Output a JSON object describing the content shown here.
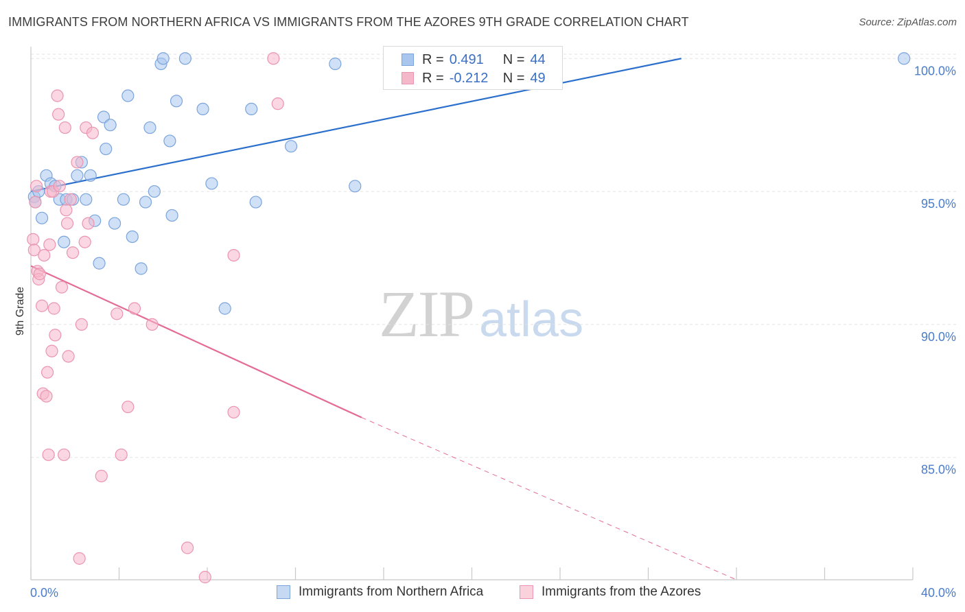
{
  "header": {
    "title": "IMMIGRANTS FROM NORTHERN AFRICA VS IMMIGRANTS FROM THE AZORES 9TH GRADE CORRELATION CHART",
    "source": "Source: ZipAtlas.com"
  },
  "watermark": {
    "zip": "ZIP",
    "atlas": "atlas"
  },
  "legend": {
    "blue": {
      "r_label": "R =",
      "r_value": "0.491",
      "n_label": "N =",
      "n_value": "44"
    },
    "pink": {
      "r_label": "R =",
      "r_value": "-0.212",
      "n_label": "N =",
      "n_value": "49"
    }
  },
  "colors": {
    "blue_fill": "#a9c6ee",
    "blue_stroke": "#7aa4db",
    "blue_line": "#2b6fcd",
    "pink_fill": "#f5b7ca",
    "pink_stroke": "#eb94b0",
    "pink_line": "#e46b96",
    "tick_text": "#4a7cc9",
    "grid": "#e3e3e3"
  },
  "chart_data": {
    "type": "scatter",
    "title": "IMMIGRANTS FROM NORTHERN AFRICA VS IMMIGRANTS FROM THE AZORES 9TH GRADE CORRELATION CHART",
    "xlabel": "",
    "ylabel": "9th Grade",
    "xlim": [
      0,
      40
    ],
    "ylim": [
      80.4,
      100.6
    ],
    "x_tick_labels": [
      "0.0%",
      "40.0%"
    ],
    "y_ticks": [
      85,
      90,
      95,
      100
    ],
    "y_tick_labels": [
      "85.0%",
      "90.0%",
      "95.0%",
      "100.0%"
    ],
    "grid": true,
    "legend_position": "bottom-center",
    "series": [
      {
        "name": "Immigrants from Northern Africa",
        "color": "#a9c6ee",
        "points": [
          [
            0.15,
            94.8
          ],
          [
            0.2,
            94.6
          ],
          [
            0.35,
            95.0
          ],
          [
            0.5,
            94.0
          ],
          [
            0.7,
            95.6
          ],
          [
            0.9,
            95.3
          ],
          [
            1.1,
            95.2
          ],
          [
            1.3,
            94.7
          ],
          [
            1.5,
            93.1
          ],
          [
            1.6,
            94.7
          ],
          [
            1.9,
            94.7
          ],
          [
            2.1,
            95.6
          ],
          [
            2.3,
            96.1
          ],
          [
            2.5,
            94.7
          ],
          [
            2.7,
            95.6
          ],
          [
            2.9,
            93.9
          ],
          [
            3.1,
            92.3
          ],
          [
            3.3,
            97.8
          ],
          [
            3.4,
            96.6
          ],
          [
            3.6,
            97.5
          ],
          [
            3.8,
            93.8
          ],
          [
            4.2,
            94.7
          ],
          [
            4.4,
            98.6
          ],
          [
            4.6,
            93.3
          ],
          [
            5.0,
            92.1
          ],
          [
            5.2,
            94.6
          ],
          [
            5.4,
            97.4
          ],
          [
            5.6,
            95.0
          ],
          [
            5.9,
            99.8
          ],
          [
            6.0,
            100.0
          ],
          [
            6.3,
            96.9
          ],
          [
            6.4,
            94.1
          ],
          [
            6.6,
            98.4
          ],
          [
            7.0,
            100.0
          ],
          [
            7.8,
            98.1
          ],
          [
            8.2,
            95.3
          ],
          [
            8.8,
            90.6
          ],
          [
            10.0,
            98.1
          ],
          [
            10.2,
            94.6
          ],
          [
            11.8,
            96.7
          ],
          [
            13.8,
            99.8
          ],
          [
            14.7,
            95.2
          ],
          [
            19.1,
            100.0
          ],
          [
            39.6,
            100.0
          ]
        ]
      },
      {
        "name": "Immigrants from the Azores",
        "color": "#f5b7ca",
        "points": [
          [
            0.1,
            93.2
          ],
          [
            0.15,
            92.8
          ],
          [
            0.2,
            94.6
          ],
          [
            0.25,
            95.2
          ],
          [
            0.3,
            92.0
          ],
          [
            0.35,
            91.7
          ],
          [
            0.4,
            91.9
          ],
          [
            0.5,
            90.7
          ],
          [
            0.55,
            87.4
          ],
          [
            0.6,
            92.6
          ],
          [
            0.7,
            87.3
          ],
          [
            0.75,
            88.2
          ],
          [
            0.8,
            85.1
          ],
          [
            0.85,
            93.0
          ],
          [
            0.9,
            95.0
          ],
          [
            0.95,
            89.0
          ],
          [
            1.0,
            95.0
          ],
          [
            1.05,
            90.6
          ],
          [
            1.1,
            89.6
          ],
          [
            1.2,
            98.6
          ],
          [
            1.25,
            97.9
          ],
          [
            1.3,
            95.2
          ],
          [
            1.4,
            91.4
          ],
          [
            1.5,
            85.1
          ],
          [
            1.55,
            97.4
          ],
          [
            1.6,
            94.3
          ],
          [
            1.65,
            93.8
          ],
          [
            1.7,
            88.8
          ],
          [
            1.8,
            94.7
          ],
          [
            1.9,
            92.7
          ],
          [
            2.1,
            96.1
          ],
          [
            2.2,
            81.2
          ],
          [
            2.3,
            90.0
          ],
          [
            2.45,
            93.1
          ],
          [
            2.5,
            97.4
          ],
          [
            2.6,
            93.8
          ],
          [
            2.8,
            97.2
          ],
          [
            3.2,
            84.3
          ],
          [
            3.9,
            90.4
          ],
          [
            4.1,
            85.1
          ],
          [
            4.4,
            86.9
          ],
          [
            4.7,
            90.6
          ],
          [
            5.5,
            90.0
          ],
          [
            7.1,
            81.6
          ],
          [
            7.9,
            80.5
          ],
          [
            9.2,
            86.7
          ],
          [
            9.2,
            92.6
          ],
          [
            11.0,
            100.0
          ],
          [
            11.2,
            98.3
          ]
        ]
      }
    ],
    "trend_lines": [
      {
        "series": "Immigrants from Northern Africa",
        "x": [
          0,
          29.5
        ],
        "y": [
          95.0,
          100.0
        ],
        "style": "solid"
      },
      {
        "series": "Immigrants from the Azores",
        "x": [
          0,
          15.0
        ],
        "y": [
          92.2,
          86.5
        ],
        "style": "solid"
      },
      {
        "series": "Immigrants from the Azores",
        "x": [
          15.0,
          32.0
        ],
        "y": [
          86.5,
          80.4
        ],
        "style": "dashed"
      }
    ]
  }
}
